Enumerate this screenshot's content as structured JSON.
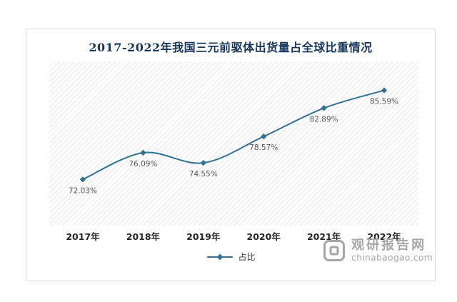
{
  "chart_data": {
    "type": "line",
    "title": "2017-2022年我国三元前驱体出货量占全球比重情况",
    "categories": [
      "2017年",
      "2018年",
      "2019年",
      "2020年",
      "2021年",
      "2022年"
    ],
    "series": [
      {
        "name": "占比",
        "values": [
          72.03,
          76.09,
          74.55,
          78.57,
          82.89,
          85.59
        ]
      }
    ],
    "value_labels": [
      "72.03%",
      "76.09%",
      "74.55%",
      "78.57%",
      "82.89%",
      "85.59%"
    ],
    "xlabel": "",
    "ylabel": "",
    "ylim": [
      65,
      90
    ],
    "grid": false,
    "legend_position": "bottom",
    "colors": {
      "line": "#2f7292",
      "title": "#17375e",
      "value_label": "#595959",
      "axis_label": "#262626",
      "watermark": "#a6a6a6"
    }
  },
  "watermark": {
    "name": "观研报告网",
    "domain": "chinabaogao.com"
  }
}
